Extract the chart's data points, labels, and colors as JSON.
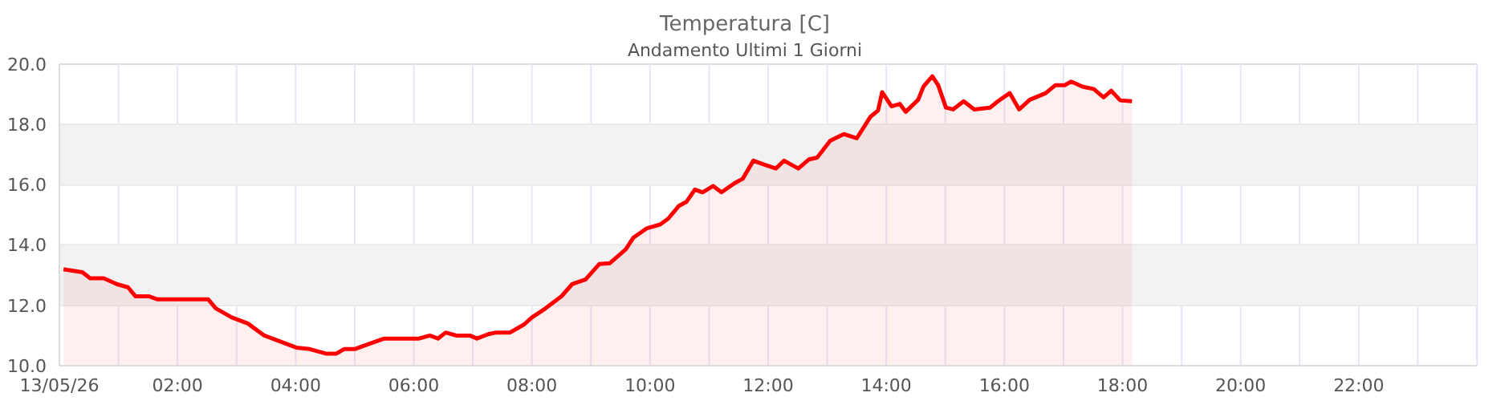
{
  "chart_data": {
    "type": "area",
    "title": "Temperatura [C]",
    "subtitle": "Andamento Ultimi 1 Giorni",
    "x": [
      0.07,
      0.39,
      0.52,
      0.75,
      0.98,
      1.16,
      1.29,
      1.52,
      1.66,
      2.52,
      2.65,
      2.92,
      3.19,
      3.47,
      3.74,
      4.01,
      4.24,
      4.51,
      4.69,
      4.82,
      5.0,
      5.28,
      5.5,
      6.09,
      6.27,
      6.41,
      6.54,
      6.72,
      6.95,
      7.07,
      7.27,
      7.4,
      7.63,
      7.87,
      8.0,
      8.23,
      8.5,
      8.68,
      8.91,
      9.14,
      9.32,
      9.59,
      9.72,
      9.95,
      10.17,
      10.31,
      10.49,
      10.62,
      10.76,
      10.89,
      11.07,
      11.21,
      11.43,
      11.57,
      11.75,
      11.93,
      12.13,
      12.27,
      12.51,
      12.69,
      12.83,
      13.05,
      13.28,
      13.5,
      13.73,
      13.86,
      13.93,
      14.09,
      14.23,
      14.33,
      14.54,
      14.63,
      14.78,
      14.88,
      15.01,
      15.13,
      15.31,
      15.49,
      15.76,
      15.89,
      16.09,
      16.25,
      16.43,
      16.7,
      16.86,
      17.02,
      17.13,
      17.33,
      17.51,
      17.68,
      17.81,
      17.96,
      18.16
    ],
    "values": [
      13.2,
      13.1,
      12.9,
      12.9,
      12.7,
      12.6,
      12.3,
      12.3,
      12.2,
      12.2,
      11.9,
      11.6,
      11.4,
      11.0,
      10.8,
      10.6,
      10.55,
      10.4,
      10.4,
      10.55,
      10.55,
      10.75,
      10.9,
      10.9,
      11.0,
      10.9,
      11.1,
      11.0,
      11.0,
      10.9,
      11.05,
      11.1,
      11.1,
      11.37,
      11.6,
      11.9,
      12.3,
      12.7,
      12.86,
      13.37,
      13.4,
      13.86,
      14.25,
      14.56,
      14.68,
      14.88,
      15.3,
      15.44,
      15.84,
      15.75,
      15.96,
      15.75,
      16.05,
      16.2,
      16.8,
      16.67,
      16.54,
      16.8,
      16.54,
      16.84,
      16.9,
      17.46,
      17.68,
      17.54,
      18.25,
      18.46,
      19.07,
      18.6,
      18.68,
      18.42,
      18.82,
      19.26,
      19.6,
      19.3,
      18.56,
      18.5,
      18.77,
      18.5,
      18.56,
      18.77,
      19.04,
      18.5,
      18.82,
      19.04,
      19.3,
      19.3,
      19.42,
      19.25,
      19.18,
      18.9,
      19.12,
      18.8,
      18.77
    ],
    "color": "#ff0000",
    "xlim": [
      0,
      24
    ],
    "xticks": [
      {
        "value": 0,
        "label": "13/05/26"
      },
      {
        "value": 1,
        "label": null
      },
      {
        "value": 2,
        "label": "02:00"
      },
      {
        "value": 3,
        "label": null
      },
      {
        "value": 4,
        "label": "04:00"
      },
      {
        "value": 5,
        "label": null
      },
      {
        "value": 6,
        "label": "06:00"
      },
      {
        "value": 7,
        "label": null
      },
      {
        "value": 8,
        "label": "08:00"
      },
      {
        "value": 9,
        "label": null
      },
      {
        "value": 10,
        "label": "10:00"
      },
      {
        "value": 11,
        "label": null
      },
      {
        "value": 12,
        "label": "12:00"
      },
      {
        "value": 13,
        "label": null
      },
      {
        "value": 14,
        "label": "14:00"
      },
      {
        "value": 15,
        "label": null
      },
      {
        "value": 16,
        "label": "16:00"
      },
      {
        "value": 17,
        "label": null
      },
      {
        "value": 18,
        "label": "18:00"
      },
      {
        "value": 19,
        "label": null
      },
      {
        "value": 20,
        "label": "20:00"
      },
      {
        "value": 21,
        "label": null
      },
      {
        "value": 22,
        "label": "22:00"
      },
      {
        "value": 23,
        "label": null
      },
      {
        "value": 24,
        "label": null
      }
    ],
    "ylim": [
      10,
      20
    ],
    "yticks": [
      {
        "value": 10,
        "label": "10.0"
      },
      {
        "value": 12,
        "label": "12.0"
      },
      {
        "value": 14,
        "label": "14.0"
      },
      {
        "value": 16,
        "label": "16.0"
      },
      {
        "value": 18,
        "label": "18.0"
      },
      {
        "value": 20,
        "label": "20.0"
      }
    ],
    "bands": [
      {
        "axis": "y",
        "from": 12,
        "to": 14,
        "color": "#f2f2f2"
      },
      {
        "axis": "y",
        "from": 16,
        "to": 18,
        "color": "#f2f2f2"
      }
    ],
    "grid": true,
    "legend": false
  }
}
